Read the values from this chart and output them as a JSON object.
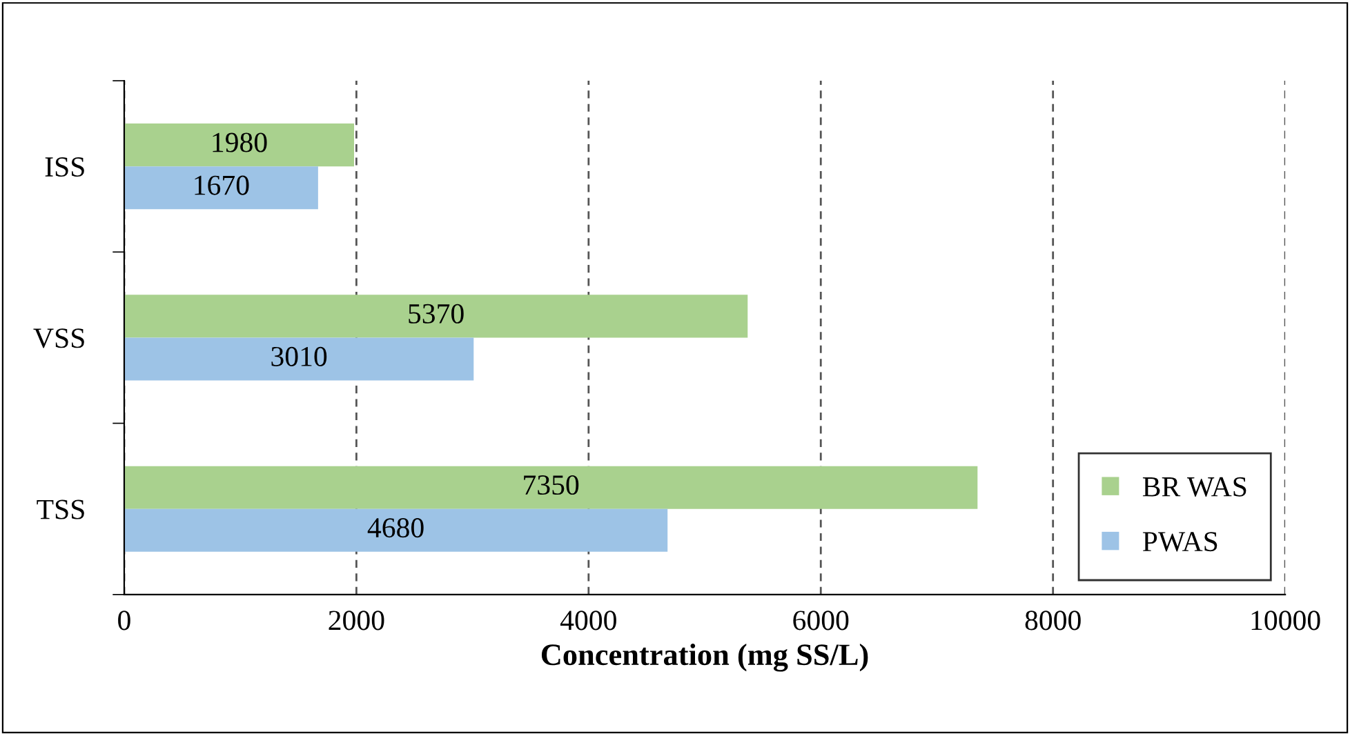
{
  "chart_data": {
    "type": "bar",
    "orientation": "horizontal",
    "xlabel": "Concentration (mg SS/L)",
    "categories": [
      "ISS",
      "VSS",
      "TSS"
    ],
    "series": [
      {
        "name": "BR WAS",
        "color": "#a9d18e",
        "values": [
          1980,
          5370,
          7350
        ]
      },
      {
        "name": "PWAS",
        "color": "#9dc3e6",
        "values": [
          1670,
          3010,
          4680
        ]
      }
    ],
    "xlim": [
      0,
      10000
    ],
    "xticks": [
      0,
      2000,
      4000,
      6000,
      8000,
      10000
    ],
    "grid": "x",
    "legend": "bottom right",
    "data_labels": true
  }
}
